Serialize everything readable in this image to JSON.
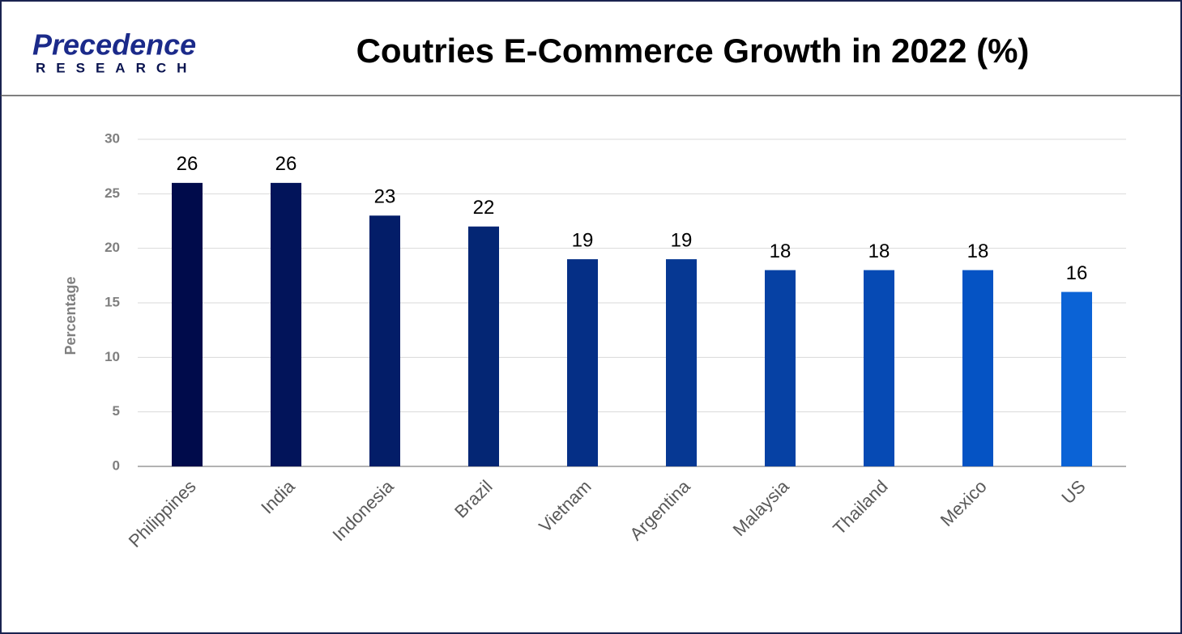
{
  "logo": {
    "name": "Precedence",
    "tagline": "RESEARCH"
  },
  "chart_data": {
    "type": "bar",
    "title": "Coutries E-Commerce Growth in 2022 (%)",
    "y_label": "Percentage",
    "categories": [
      "Philippines",
      "India",
      "Indonesia",
      "Brazil",
      "Vietnam",
      "Argentina",
      "Malaysia",
      "Thailand",
      "Mexico",
      "US"
    ],
    "values": [
      26,
      26,
      23,
      22,
      19,
      19,
      18,
      18,
      18,
      16
    ],
    "colors": [
      "#000b4b",
      "#02145a",
      "#031d68",
      "#042674",
      "#052f86",
      "#063893",
      "#0641a4",
      "#064ab4",
      "#0553c4",
      "#0b63d6"
    ],
    "ylim": [
      0,
      30
    ],
    "yticks": [
      0,
      5,
      10,
      15,
      20,
      25,
      30
    ],
    "grid": true
  }
}
